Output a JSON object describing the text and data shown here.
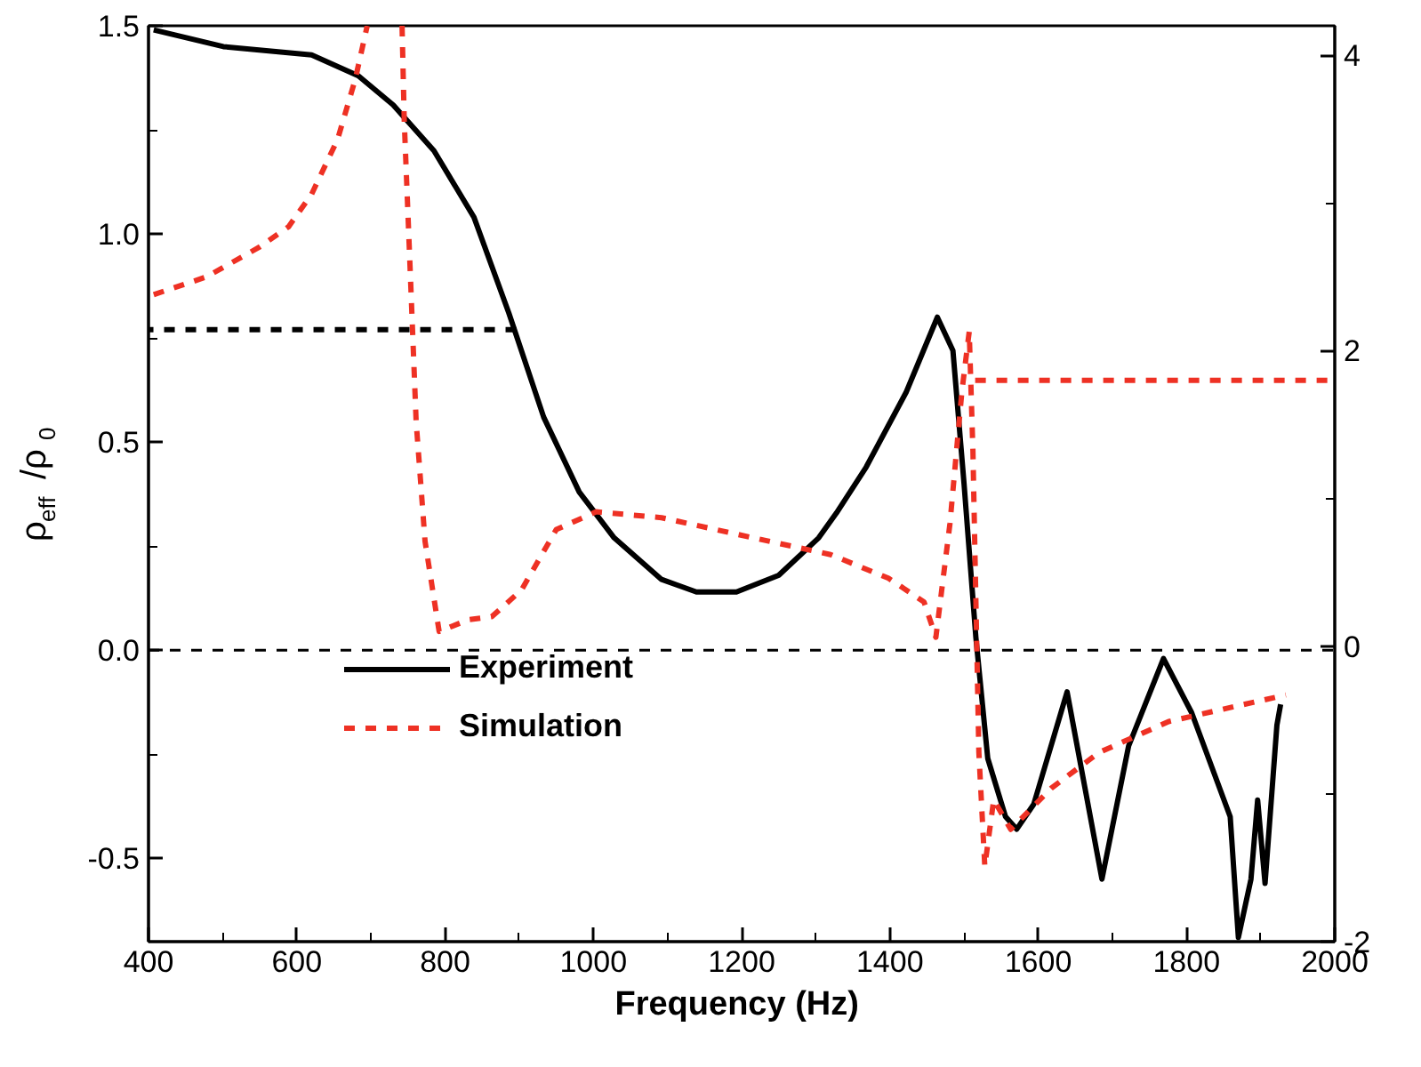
{
  "chart_data": {
    "type": "line",
    "xlabel": "Frequency  (Hz)",
    "ylabel": "ρ$_{eff}$/ρ$_{0}$",
    "xlim": [
      400,
      2000
    ],
    "xticks": [
      400,
      600,
      800,
      1000,
      1200,
      1400,
      1600,
      1800,
      2000
    ],
    "ylim": [
      -0.7,
      1.5
    ],
    "yticks": [
      {
        "value": -0.5,
        "label": "-0.5"
      },
      {
        "value": 0,
        "label": "0.0"
      },
      {
        "value": 0.5,
        "label": "0.5"
      },
      {
        "value": 1,
        "label": "1.0"
      },
      {
        "value": 1.5,
        "label": "1.5"
      }
    ],
    "y2lim": [
      -2,
      4.2
    ],
    "y2ticks": [
      {
        "value": -2,
        "label": "-2"
      },
      0,
      2,
      4
    ],
    "grid": false,
    "legend": "bottom left",
    "marker": "none",
    "ref_lines": [
      {
        "axis": "y",
        "value": 0,
        "color": "#000000",
        "line_style": "dashed"
      }
    ],
    "series": [
      {
        "name": "Experiment",
        "color": "#000000",
        "line_style": "solid",
        "x": [
          407,
          501,
          620,
          683,
          730,
          785,
          839,
          886,
          933,
          981,
          1028,
          1092,
          1139,
          1193,
          1250,
          1304,
          1328,
          1368,
          1422,
          1464,
          1485,
          1500,
          1516,
          1532,
          1556,
          1571,
          1594,
          1639,
          1663,
          1686,
          1722,
          1769,
          1807,
          1859,
          1870,
          1887,
          1896,
          1906,
          1922,
          1927
        ],
        "values": [
          1.49,
          1.45,
          1.43,
          1.38,
          1.31,
          1.2,
          1.04,
          0.81,
          0.56,
          0.38,
          0.27,
          0.17,
          0.14,
          0.14,
          0.18,
          0.27,
          0.33,
          0.44,
          0.62,
          0.8,
          0.72,
          0.4,
          0.03,
          -0.26,
          -0.4,
          -0.43,
          -0.37,
          -0.1,
          -0.33,
          -0.55,
          -0.23,
          -0.02,
          -0.15,
          -0.4,
          -0.69,
          -0.55,
          -0.36,
          -0.56,
          -0.18,
          -0.13
        ]
      },
      {
        "name": "Simulation",
        "color": "#ee3124",
        "line_style": "dashed",
        "axis": "y2",
        "x": [
          407,
          478,
          549,
          589,
          620,
          655,
          679,
          695,
          720,
          742,
          745,
          753,
          761,
          773,
          792,
          832,
          863,
          903,
          950,
          1004,
          1092,
          1210,
          1320,
          1398,
          1446,
          1462,
          1481,
          1497,
          1507,
          1512,
          1516,
          1520,
          1528,
          1540,
          1563,
          1618,
          1682,
          1776,
          1934
        ],
        "values": [
          2.38,
          2.5,
          2.7,
          2.84,
          3.06,
          3.43,
          3.84,
          4.2,
          null,
          4.2,
          3.55,
          2.54,
          1.52,
          0.71,
          0.1,
          0.18,
          0.2,
          0.38,
          0.79,
          0.91,
          0.87,
          0.74,
          0.62,
          0.46,
          0.3,
          0.06,
          0.83,
          1.72,
          2.13,
          1.32,
          0.3,
          -0.72,
          -1.49,
          -1.04,
          -1.24,
          -0.96,
          -0.72,
          -0.51,
          -0.33
        ]
      },
      {
        "color": "#000000",
        "line_style": "dashed",
        "x": [
          896,
          400
        ],
        "values": [
          0.77,
          0.77
        ]
      },
      {
        "color": "#ee3124",
        "line_style": "dashed",
        "axis": "y2",
        "x": [
          1515,
          2000
        ],
        "values": [
          1.8,
          1.8
        ]
      }
    ]
  }
}
